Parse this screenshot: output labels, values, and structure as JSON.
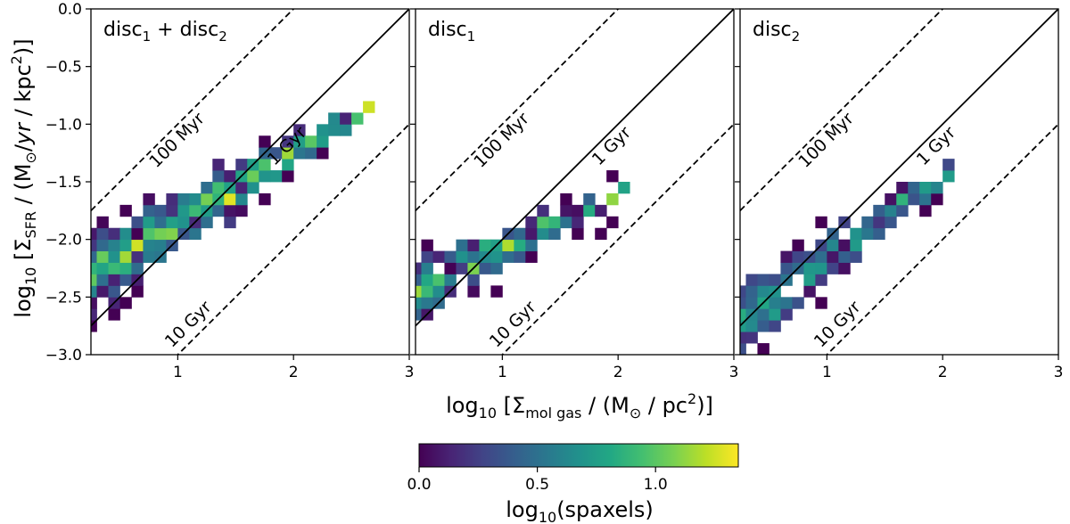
{
  "chart_data": {
    "type": "heatmap",
    "x_axis_label_tokens": [
      "log",
      "10",
      " [Σ",
      "mol gas",
      " / (M",
      "⊙",
      " / pc",
      "2",
      ")]"
    ],
    "y_axis_label_tokens": [
      "log",
      "10",
      " [Σ",
      "SFR",
      " / (M",
      "⊙",
      "/",
      "yr",
      " / kpc",
      "2",
      ")]"
    ],
    "xlim": [
      0.25,
      3
    ],
    "ylim": [
      -3,
      0
    ],
    "x_ticks": [
      1,
      2,
      3
    ],
    "y_ticks": [
      0,
      -0.5,
      -1,
      -1.5,
      -2,
      -2.5,
      -3
    ],
    "y_tick_labels": [
      "0.0",
      "−0.5",
      "−1.0",
      "−1.5",
      "−2.0",
      "−2.5",
      "−3.0"
    ],
    "bin_size": [
      0.1,
      0.1
    ],
    "reference_lines": [
      {
        "label": "100 Myr",
        "depletion_time_gyr": 0.1,
        "style": "dashed"
      },
      {
        "label": "1 Gyr",
        "depletion_time_gyr": 1,
        "style": "solid"
      },
      {
        "label": "10 Gyr",
        "depletion_time_gyr": 10,
        "style": "dashed"
      }
    ],
    "colorbar": {
      "label_tokens": [
        "log",
        "10",
        "(spaxels)"
      ],
      "range": [
        0,
        1.35
      ],
      "ticks": [
        0.0,
        0.5,
        1.0
      ],
      "tick_labels": [
        "0.0",
        "0.5",
        "1.0"
      ],
      "colormap": [
        "#440154",
        "#482475",
        "#414487",
        "#355f8d",
        "#2a788e",
        "#21918c",
        "#22a884",
        "#44bf70",
        "#7ad151",
        "#bddf26",
        "#fde725"
      ]
    },
    "panels": [
      {
        "title_tokens": [
          "disc",
          "1",
          " + disc",
          "2"
        ],
        "ridge": {
          "x": [
            0.3,
            2.6
          ],
          "y": [
            -2.3,
            -0.9
          ]
        },
        "ridge_halfwidth": [
          0.28,
          0.06
        ],
        "density_peak": 1.32,
        "seed": 11
      },
      {
        "title_tokens": [
          "disc",
          "1"
        ],
        "ridge": {
          "x": [
            0.3,
            2.0
          ],
          "y": [
            -2.45,
            -1.65
          ]
        },
        "ridge_halfwidth": [
          0.22,
          0.05
        ],
        "density_peak": 1.22,
        "seed": 23
      },
      {
        "title_tokens": [
          "disc",
          "2"
        ],
        "ridge": {
          "x": [
            0.3,
            2.0
          ],
          "y": [
            -2.7,
            -1.45
          ]
        },
        "ridge_halfwidth": [
          0.28,
          0.08
        ],
        "density_peak": 1.0,
        "seed": 37
      }
    ]
  }
}
